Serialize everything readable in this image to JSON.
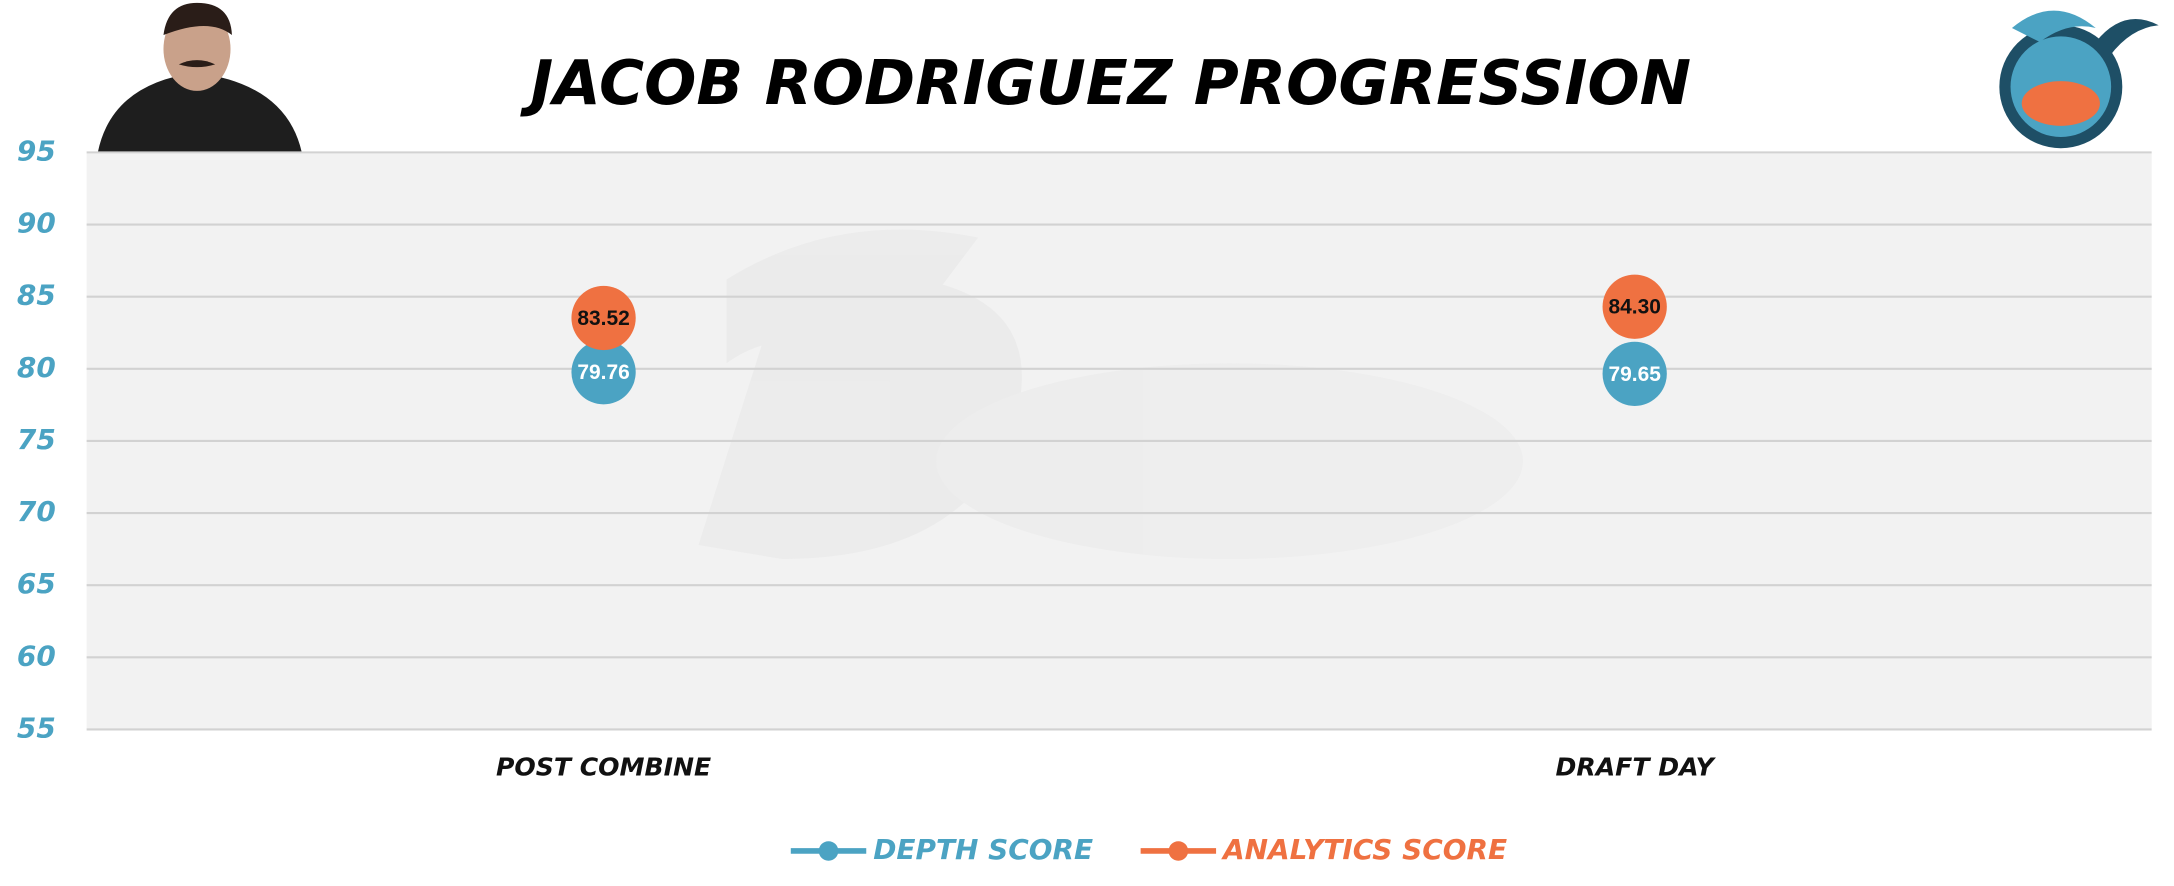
{
  "chart_data": {
    "type": "line",
    "title": "JACOB RODRIGUEZ PROGRESSION",
    "categories": [
      "POST COMBINE",
      "DRAFT DAY"
    ],
    "series": [
      {
        "name": "DEPTH SCORE",
        "color": "#4ba3c3",
        "values": [
          79.76,
          79.65
        ],
        "value_labels": [
          "79.76",
          "79.65"
        ]
      },
      {
        "name": "ANALYTICS SCORE",
        "color": "#ef7141",
        "values": [
          83.52,
          84.3
        ],
        "value_labels": [
          "83.52",
          "84.30"
        ]
      }
    ],
    "ylim": [
      55,
      95
    ],
    "yticks": [
      55,
      60,
      65,
      70,
      75,
      80,
      85,
      90,
      95
    ],
    "grid": true,
    "legend": "bottom"
  }
}
